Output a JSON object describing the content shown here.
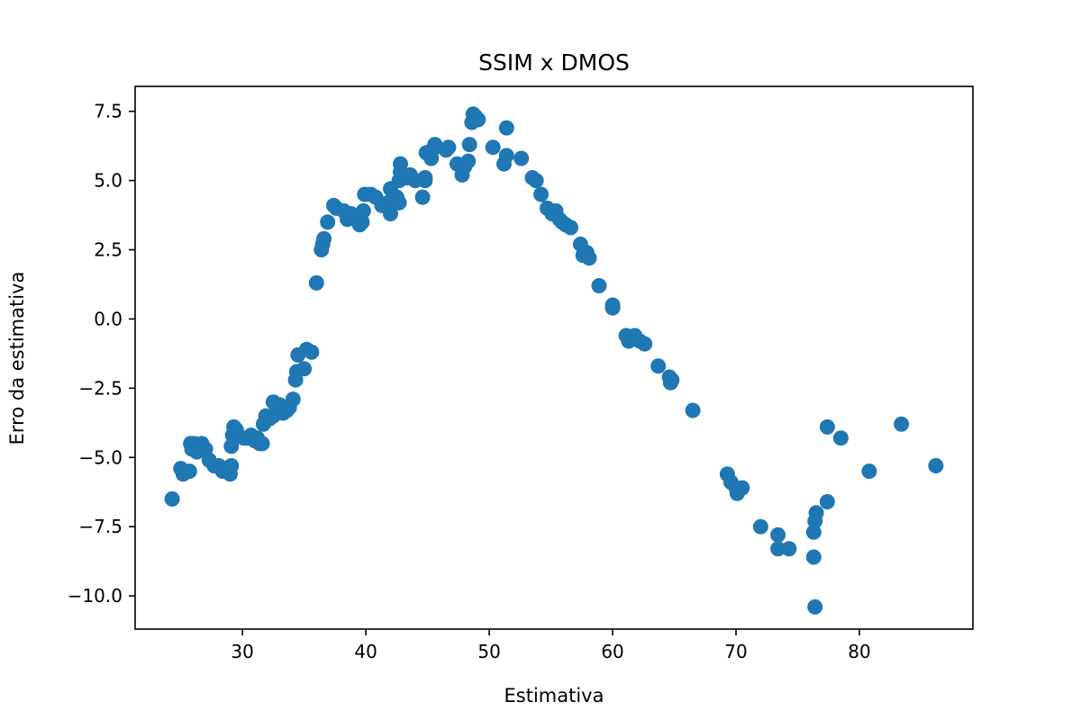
{
  "chart_data": {
    "type": "scatter",
    "title": "SSIM x DMOS",
    "xlabel": "Estimativa",
    "ylabel": "Erro da estimativa",
    "xlim": [
      21.3,
      89.2
    ],
    "ylim": [
      -11.2,
      8.4
    ],
    "x_ticks": [
      30,
      40,
      50,
      60,
      70,
      80
    ],
    "y_ticks": [
      7.5,
      5.0,
      2.5,
      0.0,
      -2.5,
      -5.0,
      -7.5,
      -10.0
    ],
    "x_tick_labels": [
      "30",
      "40",
      "50",
      "60",
      "70",
      "80"
    ],
    "y_tick_labels": [
      "7.5",
      "5.0",
      "2.5",
      "0.0",
      "−2.5",
      "−5.0",
      "−7.5",
      "−10.0"
    ],
    "grid": false,
    "marker_color": "#1f77b4",
    "series": [
      {
        "points": [
          [
            24.3,
            -6.5
          ],
          [
            25.0,
            -5.4
          ],
          [
            25.2,
            -5.6
          ],
          [
            25.7,
            -5.5
          ],
          [
            25.8,
            -4.5
          ],
          [
            25.9,
            -4.7
          ],
          [
            26.1,
            -4.5
          ],
          [
            26.3,
            -4.8
          ],
          [
            26.7,
            -4.5
          ],
          [
            27.0,
            -4.7
          ],
          [
            27.3,
            -5.1
          ],
          [
            27.7,
            -5.3
          ],
          [
            28.1,
            -5.3
          ],
          [
            28.4,
            -5.5
          ],
          [
            28.9,
            -5.4
          ],
          [
            29.0,
            -5.6
          ],
          [
            29.1,
            -5.3
          ],
          [
            29.1,
            -4.6
          ],
          [
            29.2,
            -4.2
          ],
          [
            29.3,
            -3.9
          ],
          [
            29.5,
            -4.0
          ],
          [
            30.1,
            -4.3
          ],
          [
            30.4,
            -4.3
          ],
          [
            30.7,
            -4.2
          ],
          [
            31.0,
            -4.4
          ],
          [
            31.2,
            -4.3
          ],
          [
            31.4,
            -4.5
          ],
          [
            31.6,
            -4.5
          ],
          [
            31.7,
            -3.8
          ],
          [
            31.9,
            -3.5
          ],
          [
            32.2,
            -3.6
          ],
          [
            32.5,
            -3.5
          ],
          [
            32.5,
            -3.0
          ],
          [
            32.8,
            -3.3
          ],
          [
            33.0,
            -3.1
          ],
          [
            33.3,
            -3.4
          ],
          [
            33.6,
            -3.3
          ],
          [
            33.8,
            -3.2
          ],
          [
            34.1,
            -2.9
          ],
          [
            34.3,
            -2.2
          ],
          [
            34.4,
            -1.9
          ],
          [
            34.5,
            -1.3
          ],
          [
            35.0,
            -1.8
          ],
          [
            35.2,
            -1.1
          ],
          [
            35.6,
            -1.2
          ],
          [
            36.0,
            1.3
          ],
          [
            36.4,
            2.5
          ],
          [
            36.5,
            2.7
          ],
          [
            36.6,
            2.9
          ],
          [
            36.9,
            3.5
          ],
          [
            37.4,
            4.1
          ],
          [
            37.6,
            4.0
          ],
          [
            38.2,
            3.9
          ],
          [
            38.5,
            3.6
          ],
          [
            38.8,
            3.8
          ],
          [
            39.2,
            3.6
          ],
          [
            39.5,
            3.4
          ],
          [
            39.7,
            3.5
          ],
          [
            39.8,
            3.9
          ],
          [
            39.9,
            4.5
          ],
          [
            40.4,
            4.5
          ],
          [
            40.8,
            4.4
          ],
          [
            41.3,
            4.1
          ],
          [
            41.8,
            4.2
          ],
          [
            42.0,
            3.8
          ],
          [
            42.0,
            4.7
          ],
          [
            42.5,
            4.4
          ],
          [
            42.7,
            4.2
          ],
          [
            42.7,
            5.0
          ],
          [
            42.8,
            5.3
          ],
          [
            42.8,
            5.6
          ],
          [
            43.3,
            5.1
          ],
          [
            43.6,
            5.2
          ],
          [
            44.0,
            5.0
          ],
          [
            44.6,
            4.4
          ],
          [
            44.8,
            5.0
          ],
          [
            44.8,
            5.1
          ],
          [
            44.9,
            6.0
          ],
          [
            45.3,
            5.8
          ],
          [
            45.4,
            6.1
          ],
          [
            45.6,
            6.3
          ],
          [
            46.5,
            6.1
          ],
          [
            46.7,
            6.2
          ],
          [
            47.4,
            5.6
          ],
          [
            47.8,
            5.2
          ],
          [
            48.0,
            5.5
          ],
          [
            48.3,
            5.7
          ],
          [
            48.4,
            6.3
          ],
          [
            48.6,
            7.1
          ],
          [
            48.7,
            7.4
          ],
          [
            48.9,
            7.3
          ],
          [
            49.1,
            7.2
          ],
          [
            50.3,
            6.2
          ],
          [
            51.2,
            5.6
          ],
          [
            51.4,
            5.9
          ],
          [
            51.4,
            6.9
          ],
          [
            52.6,
            5.8
          ],
          [
            53.5,
            5.1
          ],
          [
            53.8,
            5.0
          ],
          [
            54.2,
            4.5
          ],
          [
            54.7,
            4.0
          ],
          [
            55.1,
            3.8
          ],
          [
            55.4,
            3.9
          ],
          [
            55.7,
            3.6
          ],
          [
            55.9,
            3.5
          ],
          [
            56.2,
            3.4
          ],
          [
            56.6,
            3.3
          ],
          [
            57.4,
            2.7
          ],
          [
            57.6,
            2.3
          ],
          [
            57.9,
            2.4
          ],
          [
            58.1,
            2.2
          ],
          [
            58.9,
            1.2
          ],
          [
            60.0,
            0.4
          ],
          [
            60.0,
            0.5
          ],
          [
            61.1,
            -0.6
          ],
          [
            61.3,
            -0.8
          ],
          [
            61.8,
            -0.6
          ],
          [
            62.2,
            -0.8
          ],
          [
            62.6,
            -0.9
          ],
          [
            63.7,
            -1.7
          ],
          [
            64.6,
            -2.1
          ],
          [
            64.7,
            -2.3
          ],
          [
            64.8,
            -2.2
          ],
          [
            66.5,
            -3.3
          ],
          [
            69.3,
            -5.6
          ],
          [
            69.6,
            -5.9
          ],
          [
            70.0,
            -6.1
          ],
          [
            70.1,
            -6.3
          ],
          [
            70.5,
            -6.1
          ],
          [
            72.0,
            -7.5
          ],
          [
            73.4,
            -7.8
          ],
          [
            73.4,
            -8.3
          ],
          [
            74.3,
            -8.3
          ],
          [
            76.3,
            -8.6
          ],
          [
            76.3,
            -7.7
          ],
          [
            76.4,
            -7.3
          ],
          [
            76.5,
            -7.0
          ],
          [
            76.4,
            -10.4
          ],
          [
            77.4,
            -6.6
          ],
          [
            77.4,
            -3.9
          ],
          [
            78.5,
            -4.3
          ],
          [
            80.8,
            -5.5
          ],
          [
            83.4,
            -3.8
          ],
          [
            86.2,
            -5.3
          ]
        ]
      }
    ]
  }
}
